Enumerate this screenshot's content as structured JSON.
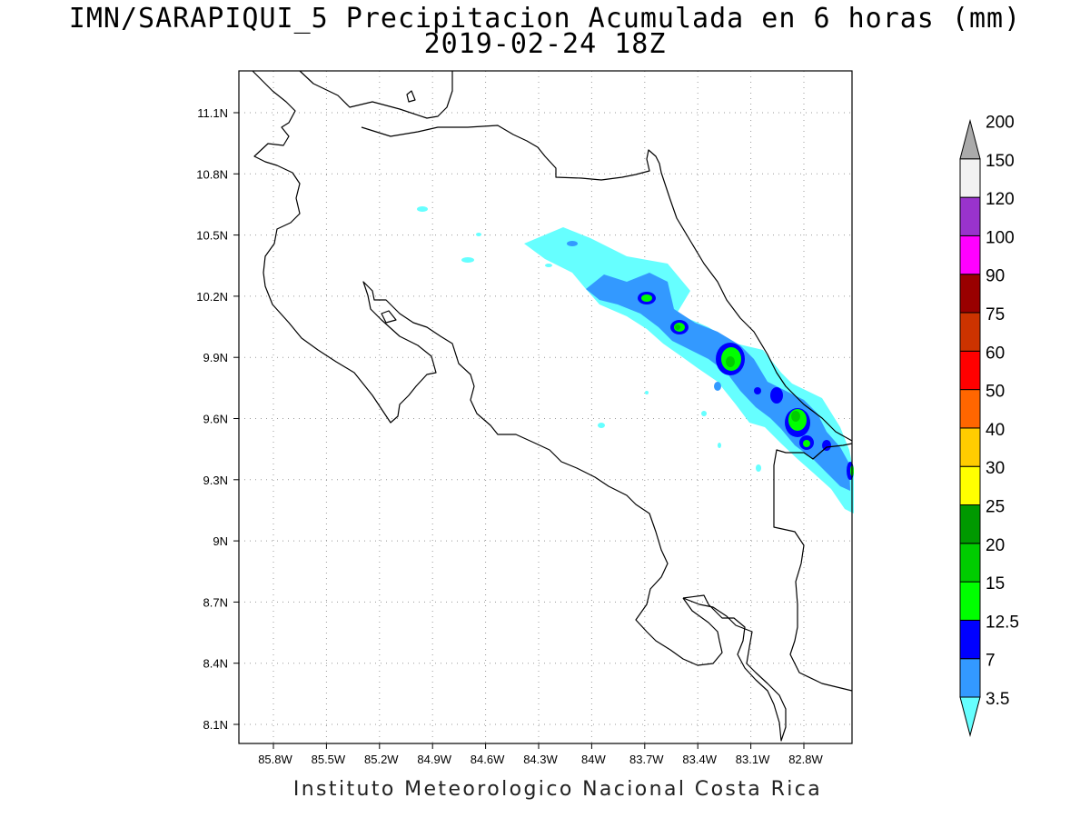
{
  "title": {
    "line1": "IMN/SARAPIQUI_5 Precipitacion Acumulada en 6 horas (mm)",
    "line2": "2019-02-24 18Z"
  },
  "footer": "Instituto Meteorologico Nacional Costa Rica",
  "lat_labels": [
    "11.1N",
    "10.8N",
    "10.5N",
    "10.2N",
    "9.9N",
    "9.6N",
    "9.3N",
    "9N",
    "8.7N",
    "8.4N",
    "8.1N"
  ],
  "lon_labels": [
    "85.8W",
    "85.5W",
    "85.2W",
    "84.9W",
    "84.6W",
    "84.3W",
    "84W",
    "83.7W",
    "83.4W",
    "83.1W",
    "82.8W"
  ],
  "colorbar": {
    "labels": [
      "3.5",
      "7",
      "12.5",
      "15",
      "20",
      "25",
      "30",
      "40",
      "50",
      "60",
      "75",
      "90",
      "100",
      "120",
      "150",
      "200"
    ],
    "colors": [
      "#66ffff",
      "#3399ff",
      "#0000ff",
      "#00ff00",
      "#00cc00",
      "#009900",
      "#ffff00",
      "#ffcc00",
      "#ff6600",
      "#ff0000",
      "#cc3300",
      "#990000",
      "#ff00ff",
      "#9933cc",
      "#f2f2f2",
      "#aaaaaa"
    ]
  }
}
